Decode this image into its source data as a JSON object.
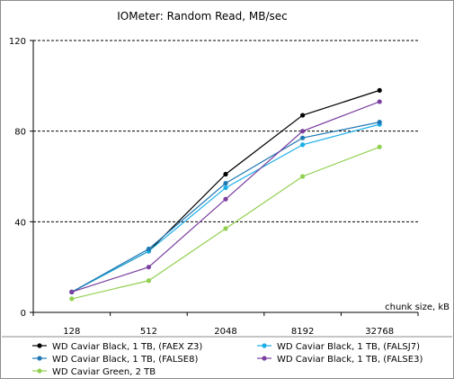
{
  "chart_data": {
    "type": "line",
    "title": "IOMeter: Random Read, MB/sec",
    "xlabel": "chunk size, kB",
    "ylabel": "",
    "categories": [
      "128",
      "512",
      "2048",
      "8192",
      "32768"
    ],
    "ylim": [
      0,
      120
    ],
    "yticks": [
      "0",
      "40",
      "80",
      "120"
    ],
    "yticks_values": [
      0,
      40,
      80,
      120
    ],
    "grid": "horizontal-dashed",
    "legend_position": "bottom",
    "series": [
      {
        "name": "WD Caviar Black, 1 TB, (FAEX Z3)",
        "color": "#000000",
        "values": [
          9,
          27,
          61,
          87,
          98
        ]
      },
      {
        "name": "WD Caviar Black, 1 TB, (FALSJ7)",
        "color": "#1aaee8",
        "values": [
          9,
          27,
          55,
          74,
          83
        ]
      },
      {
        "name": "WD Caviar Black, 1 TB, (FALSE8)",
        "color": "#1f78b4",
        "values": [
          9,
          28,
          57,
          77,
          84
        ]
      },
      {
        "name": "WD Caviar Black, 1 TB, (FALSE3)",
        "color": "#7b3fa0",
        "values": [
          9,
          20,
          50,
          80,
          93
        ]
      },
      {
        "name": "WD Caviar Green, 2 TB",
        "color": "#92d050",
        "values": [
          6,
          14,
          37,
          60,
          73
        ]
      }
    ]
  }
}
